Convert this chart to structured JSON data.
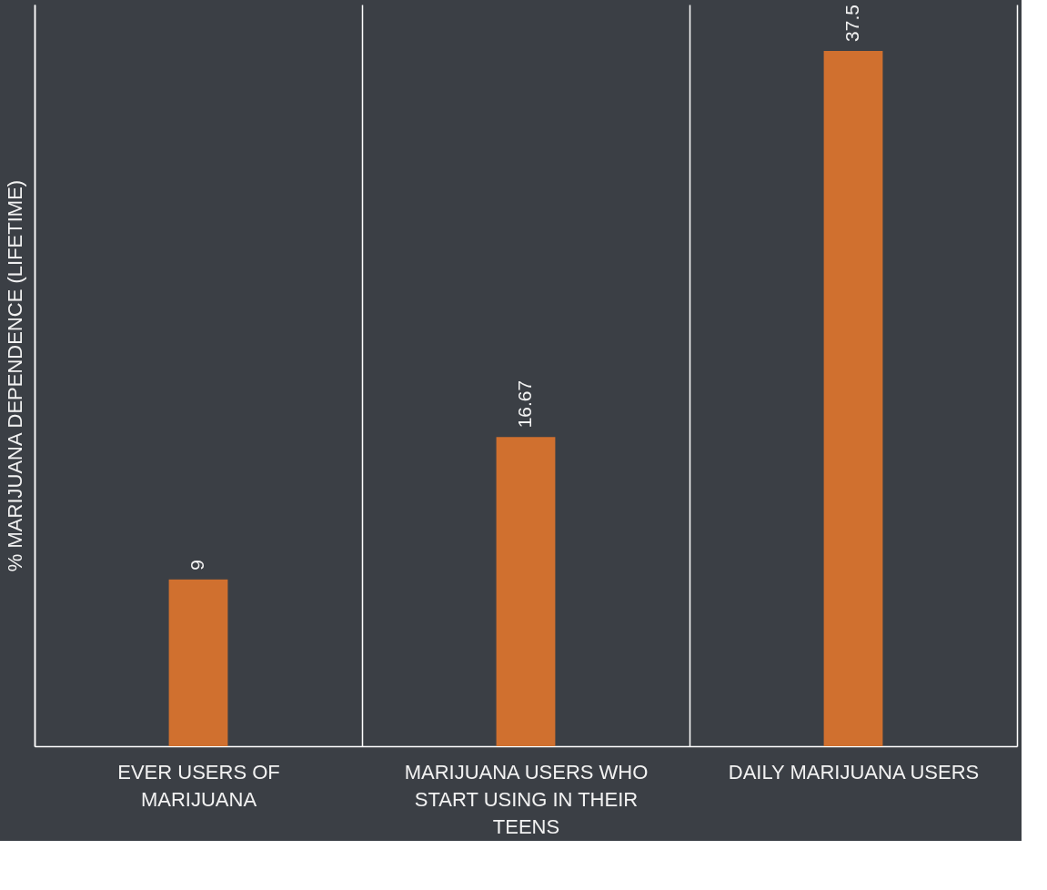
{
  "chart_data": {
    "type": "bar",
    "ylabel": "% MARIJUANA DEPENDENCE (LIFETIME)",
    "categories": [
      "EVER USERS OF MARIJUANA",
      "MARIJUANA USERS WHO START USING IN THEIR TEENS",
      "DAILY MARIJUANA USERS"
    ],
    "values": [
      9,
      16.67,
      37.5
    ],
    "color": "#d0702f",
    "ylim": [
      0,
      40
    ],
    "data_labels": true,
    "grid": "x",
    "tick_labels": "x"
  }
}
